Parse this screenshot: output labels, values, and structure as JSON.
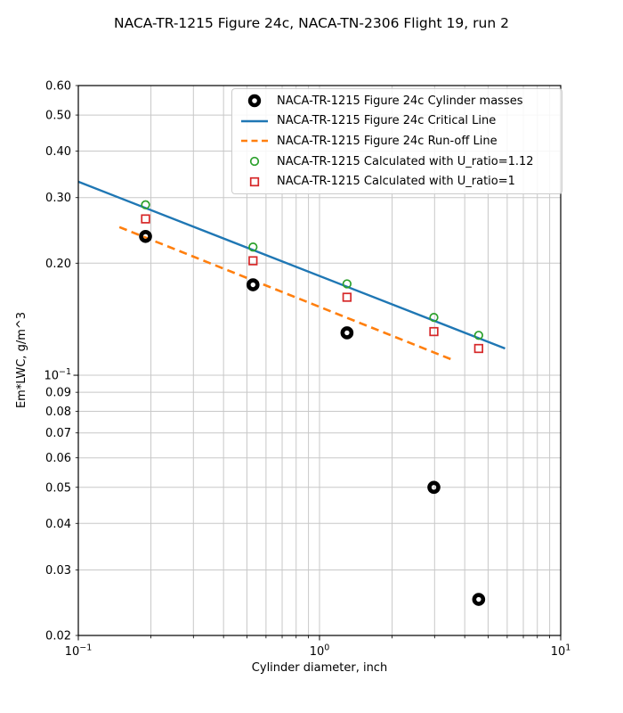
{
  "figure": {
    "title": "NACA-TR-1215 Figure 24c, NACA-TN-2306 Flight 19, run 2"
  },
  "chart_data": {
    "type": "scatter",
    "title": "NACA-TR-1215 Figure 24c, NACA-TN-2306 Flight 19, run 2",
    "xlabel": "Cylinder diameter, inch",
    "ylabel": "Em*LWC, g/m^3",
    "x_scale": "log",
    "y_scale": "log",
    "xlim": [
      0.1,
      10
    ],
    "ylim": [
      0.02,
      0.6
    ],
    "grid": true,
    "grid_color": "#c8c8c8",
    "background": "#ffffff",
    "legend_position": "upper right",
    "x_major_ticks": [
      {
        "value": 0.1,
        "base": "10",
        "exp": "−1"
      },
      {
        "value": 1,
        "base": "10",
        "exp": "0"
      },
      {
        "value": 10,
        "base": "10",
        "exp": "1"
      }
    ],
    "x_minor_ticks": [
      0.2,
      0.3,
      0.4,
      0.5,
      0.6,
      0.7,
      0.8,
      0.9,
      2,
      3,
      4,
      5,
      6,
      7,
      8,
      9
    ],
    "y_ticks": [
      {
        "value": 0.6,
        "label": "0.60"
      },
      {
        "value": 0.5,
        "label": "0.50"
      },
      {
        "value": 0.4,
        "label": "0.40"
      },
      {
        "value": 0.3,
        "label": "0.30"
      },
      {
        "value": 0.2,
        "label": "0.20"
      },
      {
        "value": 0.1,
        "base": "10",
        "exp": "−1",
        "major": true
      },
      {
        "value": 0.09,
        "label": "0.09"
      },
      {
        "value": 0.08,
        "label": "0.08"
      },
      {
        "value": 0.07,
        "label": "0.07"
      },
      {
        "value": 0.06,
        "label": "0.06"
      },
      {
        "value": 0.05,
        "label": "0.05"
      },
      {
        "value": 0.04,
        "label": "0.04"
      },
      {
        "value": 0.03,
        "label": "0.03"
      },
      {
        "value": 0.02,
        "label": "0.02"
      }
    ],
    "series": [
      {
        "name": "NACA-TR-1215 Figure 24c Cylinder masses",
        "type": "scatter",
        "marker": "bold-open-circle",
        "color": "#000000",
        "x": [
          0.19,
          0.53,
          1.3,
          2.98,
          4.57
        ],
        "y": [
          0.236,
          0.175,
          0.13,
          0.05,
          0.025
        ]
      },
      {
        "name": "NACA-TR-1215 Figure 24c Critical Line",
        "type": "line",
        "style": "solid",
        "color": "#1f77b4",
        "x": [
          0.1,
          5.88
        ],
        "y": [
          0.331,
          0.118
        ]
      },
      {
        "name": "NACA-TR-1215 Figure 24c Run-off Line",
        "type": "line",
        "style": "dashed",
        "color": "#ff7f0e",
        "x": [
          0.148,
          3.56
        ],
        "y": [
          0.25,
          0.11
        ]
      },
      {
        "name": "NACA-TR-1215 Calculated with U_ratio=1.12",
        "type": "scatter",
        "marker": "open-circle",
        "color": "#2ca02c",
        "x": [
          0.19,
          0.53,
          1.3,
          2.98,
          4.57
        ],
        "y": [
          0.287,
          0.221,
          0.176,
          0.143,
          0.128
        ]
      },
      {
        "name": "NACA-TR-1215 Calculated with U_ratio=1",
        "type": "scatter",
        "marker": "open-square",
        "color": "#d62728",
        "x": [
          0.19,
          0.53,
          1.3,
          2.98,
          4.57
        ],
        "y": [
          0.263,
          0.203,
          0.162,
          0.131,
          0.118
        ]
      }
    ]
  }
}
